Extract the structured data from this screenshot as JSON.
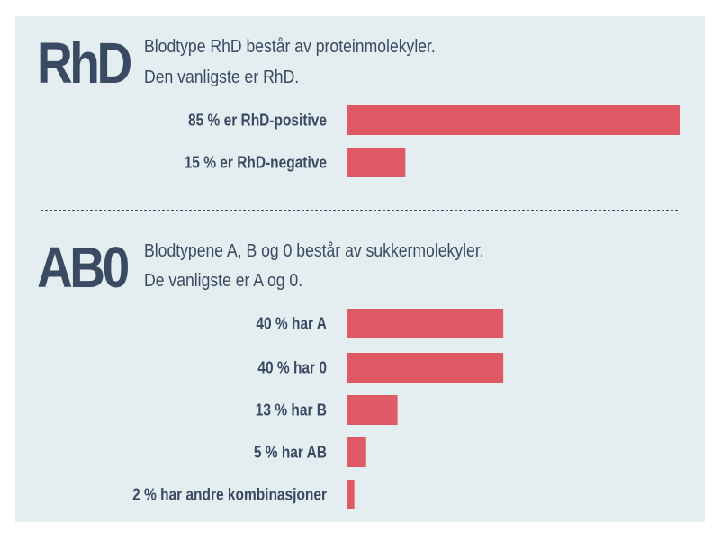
{
  "colors": {
    "background": "#e4eef1",
    "bar": "#e05a65",
    "text": "#3a4a63"
  },
  "rhd": {
    "heading": "RhD",
    "line1": "Blodtype RhD består av proteinmolekyler.",
    "line2": "Den vanligste er RhD."
  },
  "ab0": {
    "heading": "AB0",
    "line1": "Blodtypene A, B og 0 består av sukkermolekyler.",
    "line2": "De vanligste er A og 0."
  },
  "chart_data": [
    {
      "type": "bar",
      "orientation": "horizontal",
      "categories": [
        "85 % er RhD-positive",
        "15 % er RhD-negative"
      ],
      "values": [
        85,
        15
      ],
      "unit": "%"
    },
    {
      "type": "bar",
      "orientation": "horizontal",
      "categories": [
        "40 % har A",
        "40 % har 0",
        "13 % har B",
        "5 % har AB",
        "2 % har andre kombinasjoner"
      ],
      "values": [
        40,
        40,
        13,
        5,
        2
      ],
      "unit": "%"
    }
  ]
}
